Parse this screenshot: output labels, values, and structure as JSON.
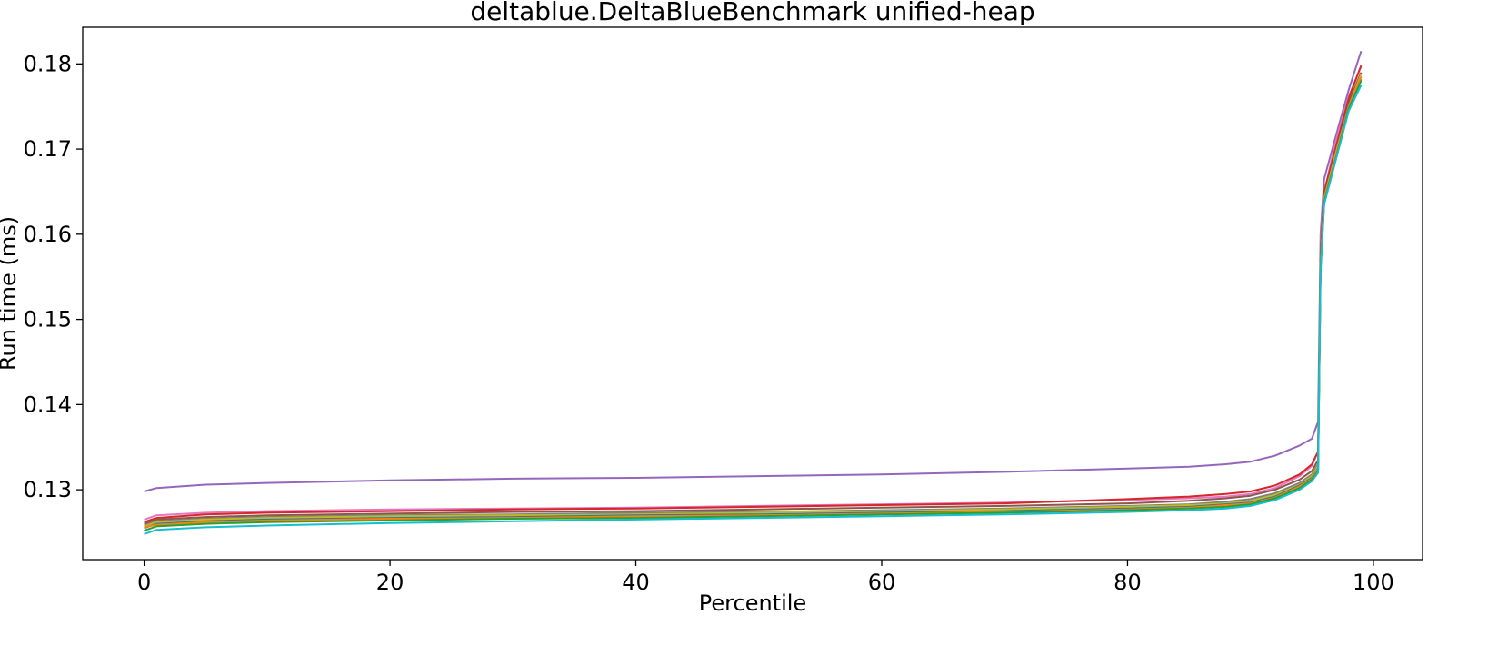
{
  "chart_data": {
    "type": "line",
    "title": "deltablue.DeltaBlueBenchmark unified-heap",
    "xlabel": "Percentile",
    "ylabel": "Run time (ms)",
    "xlim": [
      -5,
      104
    ],
    "ylim": [
      0.1218,
      0.1843
    ],
    "xticks": [
      0,
      20,
      40,
      60,
      80,
      100
    ],
    "xtick_labels": [
      "0",
      "20",
      "40",
      "60",
      "80",
      "100"
    ],
    "yticks": [
      0.13,
      0.14,
      0.15,
      0.16,
      0.17,
      0.18
    ],
    "ytick_labels": [
      "0.13",
      "0.14",
      "0.15",
      "0.16",
      "0.17",
      "0.18"
    ],
    "grid": false,
    "legend": "none",
    "x": [
      0,
      1,
      5,
      10,
      20,
      30,
      40,
      50,
      60,
      70,
      80,
      85,
      88,
      90,
      92,
      94,
      95,
      95.5,
      95.7,
      96,
      97,
      98,
      99
    ],
    "series": [
      {
        "color": "#9467bd",
        "values": [
          0.1298,
          0.1302,
          0.1306,
          0.1308,
          0.1311,
          0.1313,
          0.1314,
          0.1316,
          0.1318,
          0.1321,
          0.1325,
          0.1327,
          0.133,
          0.1333,
          0.134,
          0.1352,
          0.136,
          0.138,
          0.16,
          0.1665,
          0.1718,
          0.177,
          0.1815
        ]
      },
      {
        "color": "#e377c2",
        "values": [
          0.1265,
          0.127,
          0.1273,
          0.1275,
          0.1277,
          0.1278,
          0.1279,
          0.1281,
          0.1283,
          0.1285,
          0.1288,
          0.129,
          0.1292,
          0.1295,
          0.1302,
          0.1316,
          0.1328,
          0.1345,
          0.159,
          0.165,
          0.1712,
          0.1762,
          0.1797
        ]
      },
      {
        "color": "#d62728",
        "values": [
          0.1262,
          0.1267,
          0.1271,
          0.1273,
          0.1275,
          0.1277,
          0.1278,
          0.128,
          0.1282,
          0.1284,
          0.1289,
          0.1292,
          0.1295,
          0.1298,
          0.1305,
          0.1318,
          0.133,
          0.1345,
          0.158,
          0.165,
          0.1705,
          0.176,
          0.1798
        ]
      },
      {
        "color": "#8c564b",
        "values": [
          0.126,
          0.1265,
          0.1268,
          0.127,
          0.1272,
          0.1274,
          0.1275,
          0.1277,
          0.1279,
          0.1281,
          0.1284,
          0.1287,
          0.129,
          0.1293,
          0.13,
          0.1312,
          0.1322,
          0.1335,
          0.157,
          0.1645,
          0.17,
          0.1755,
          0.179
        ]
      },
      {
        "color": "#7f7f7f",
        "values": [
          0.1258,
          0.1263,
          0.1266,
          0.1268,
          0.127,
          0.1271,
          0.1273,
          0.1274,
          0.1276,
          0.1278,
          0.1281,
          0.1283,
          0.1286,
          0.1289,
          0.1296,
          0.1308,
          0.1318,
          0.133,
          0.1565,
          0.164,
          0.1695,
          0.175,
          0.1785
        ]
      },
      {
        "color": "#bcbd22",
        "values": [
          0.1257,
          0.1262,
          0.1265,
          0.1267,
          0.1269,
          0.127,
          0.1271,
          0.1273,
          0.1275,
          0.1277,
          0.128,
          0.1282,
          0.1284,
          0.1287,
          0.1294,
          0.1306,
          0.1316,
          0.1328,
          0.1565,
          0.1642,
          0.1698,
          0.175,
          0.1788
        ]
      },
      {
        "color": "#1f77b4",
        "values": [
          0.1255,
          0.126,
          0.1263,
          0.1265,
          0.1267,
          0.1268,
          0.127,
          0.1271,
          0.1273,
          0.1275,
          0.1278,
          0.128,
          0.1283,
          0.1285,
          0.1292,
          0.1305,
          0.1314,
          0.1325,
          0.156,
          0.1638,
          0.1693,
          0.1748,
          0.1782
        ]
      },
      {
        "color": "#ff7f0e",
        "values": [
          0.1256,
          0.1259,
          0.1262,
          0.1264,
          0.1266,
          0.1267,
          0.1269,
          0.127,
          0.1272,
          0.1274,
          0.1277,
          0.1279,
          0.1282,
          0.1284,
          0.1291,
          0.1304,
          0.1313,
          0.1324,
          0.156,
          0.164,
          0.1695,
          0.175,
          0.1785
        ]
      },
      {
        "color": "#2ca02c",
        "values": [
          0.1252,
          0.1257,
          0.126,
          0.1262,
          0.1264,
          0.1266,
          0.1267,
          0.1269,
          0.1271,
          0.1273,
          0.1276,
          0.1278,
          0.128,
          0.1283,
          0.129,
          0.1302,
          0.1312,
          0.1322,
          0.156,
          0.1638,
          0.1692,
          0.1748,
          0.178
        ]
      },
      {
        "color": "#17becf",
        "values": [
          0.1248,
          0.1253,
          0.1256,
          0.1258,
          0.1261,
          0.1263,
          0.1265,
          0.1267,
          0.1269,
          0.1271,
          0.1274,
          0.1276,
          0.1278,
          0.1281,
          0.1288,
          0.13,
          0.131,
          0.132,
          0.1555,
          0.1635,
          0.169,
          0.1745,
          0.1775
        ]
      }
    ]
  }
}
